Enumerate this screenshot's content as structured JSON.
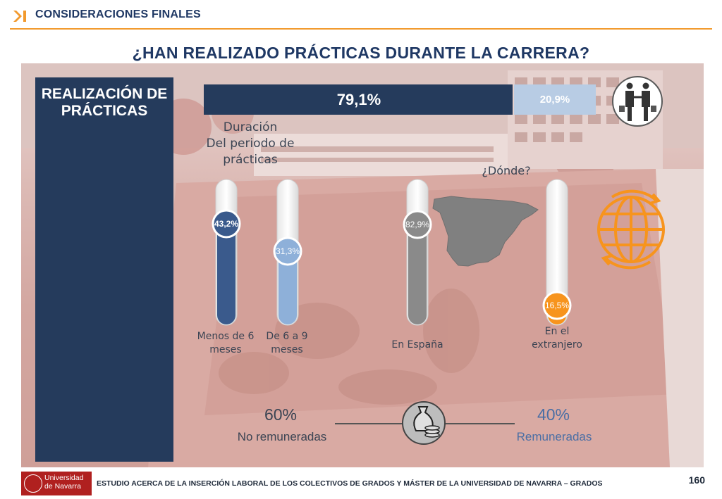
{
  "header": {
    "section": "CONSIDERACIONES FINALES"
  },
  "title": "¿HAN REALIZADO PRÁCTICAS DURANTE LA CARRERA?",
  "panel": {
    "title": "REALIZACIÓN DE PRÁCTICAS"
  },
  "colors": {
    "navy": "#253b5c",
    "lightblue": "#b8cce4",
    "blue_dark": "#3a5a8c",
    "blue_light": "#8eb0d9",
    "gray": "#8a8a8a",
    "orange": "#f7941d"
  },
  "chart_data": [
    {
      "type": "bar",
      "orientation": "horizontal-stacked",
      "series": [
        {
          "label": "79,1%",
          "value": 79.1
        },
        {
          "label": "20,9%",
          "value": 20.9
        }
      ]
    },
    {
      "type": "bar",
      "title": "Duración Del periodo de prácticas",
      "categories": [
        "Menos de 6 meses",
        "De 6 a 9 meses"
      ],
      "values": [
        43.2,
        31.3
      ],
      "labels": [
        "43,2%",
        "31,3%"
      ],
      "colors": [
        "#3a5a8c",
        "#8eb0d9"
      ]
    },
    {
      "type": "bar",
      "title": "¿Dónde?",
      "categories": [
        "En España",
        "En el extranjero"
      ],
      "values": [
        82.9,
        16.5
      ],
      "labels": [
        "82,9%",
        "16,5%"
      ],
      "colors": [
        "#8a8a8a",
        "#f7941d"
      ]
    },
    {
      "type": "bar",
      "orientation": "split",
      "categories": [
        "No remuneradas",
        "Remuneradas"
      ],
      "values": [
        60,
        40
      ],
      "labels": [
        "60%",
        "40%"
      ]
    }
  ],
  "duration": {
    "title_lines": [
      "Duración",
      "Del periodo de",
      "prácticas"
    ],
    "cat1_lines": [
      "Menos de 6",
      "meses"
    ],
    "cat2_lines": [
      "De 6 a 9",
      "meses"
    ]
  },
  "where": {
    "title": "¿Dónde?",
    "cat1": "En España",
    "cat2_lines": [
      "En el",
      "extranjero"
    ]
  },
  "pay": {
    "pct_unpaid": "60%",
    "lbl_unpaid": "No remuneradas",
    "pct_paid": "40%",
    "lbl_paid": "Remuneradas"
  },
  "icons": [
    "handshake-icon",
    "globe-icon",
    "money-bag-icon",
    "spain-map-icon"
  ],
  "footer": {
    "logo_lines": [
      "Universidad",
      "de Navarra"
    ],
    "text": "ESTUDIO ACERCA DE LA INSERCIÓN LABORAL DE LOS COLECTIVOS DE GRADOS Y MÁSTER DE LA UNIVERSIDAD DE NAVARRA – GRADOS",
    "page": "160"
  }
}
